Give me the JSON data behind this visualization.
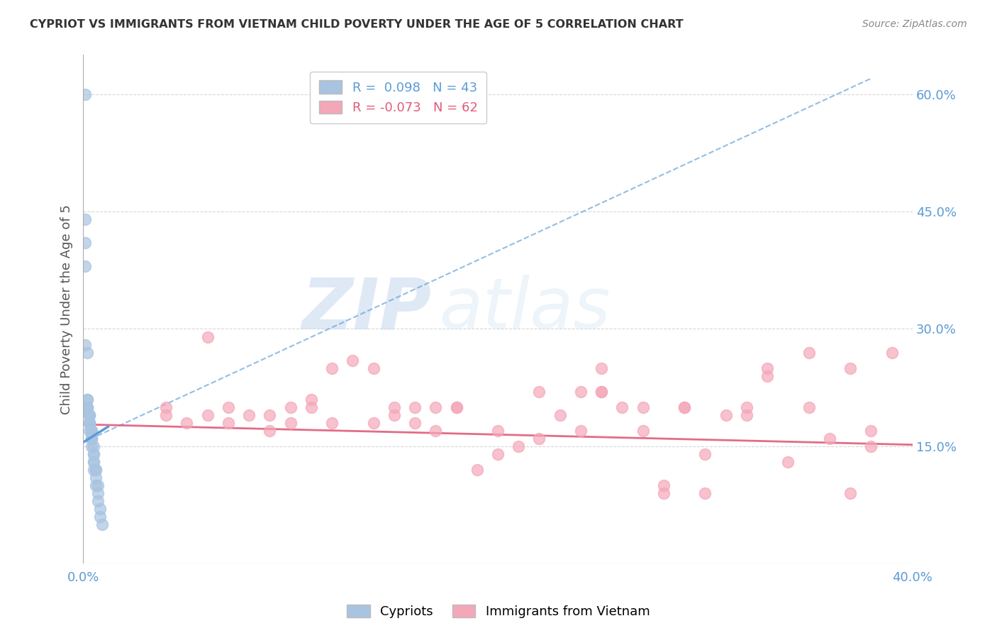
{
  "title": "CYPRIOT VS IMMIGRANTS FROM VIETNAM CHILD POVERTY UNDER THE AGE OF 5 CORRELATION CHART",
  "source": "Source: ZipAtlas.com",
  "ylabel": "Child Poverty Under the Age of 5",
  "xlim": [
    0.0,
    0.4
  ],
  "ylim": [
    0.0,
    0.65
  ],
  "y_tick_right_labels": [
    "",
    "15.0%",
    "",
    "30.0%",
    "",
    "45.0%",
    "",
    "60.0%"
  ],
  "y_tick_right_vals": [
    0.0,
    0.15,
    0.225,
    0.3,
    0.375,
    0.45,
    0.525,
    0.6
  ],
  "hlines": [
    0.15,
    0.3,
    0.45,
    0.6
  ],
  "cypriot_color": "#a8c4e0",
  "vietnam_color": "#f4a7b9",
  "cypriot_trend_color": "#5b9bd5",
  "vietnam_trend_color": "#e05c7a",
  "R_cypriot": 0.098,
  "N_cypriot": 43,
  "R_vietnam": -0.073,
  "N_vietnam": 62,
  "cypriot_x": [
    0.001,
    0.001,
    0.001,
    0.001,
    0.001,
    0.002,
    0.002,
    0.002,
    0.002,
    0.002,
    0.002,
    0.003,
    0.003,
    0.003,
    0.003,
    0.003,
    0.003,
    0.003,
    0.003,
    0.004,
    0.004,
    0.004,
    0.004,
    0.004,
    0.004,
    0.004,
    0.004,
    0.005,
    0.005,
    0.005,
    0.005,
    0.005,
    0.005,
    0.006,
    0.006,
    0.006,
    0.006,
    0.007,
    0.007,
    0.007,
    0.008,
    0.008,
    0.009
  ],
  "cypriot_y": [
    0.6,
    0.44,
    0.41,
    0.38,
    0.28,
    0.27,
    0.21,
    0.21,
    0.2,
    0.2,
    0.2,
    0.19,
    0.19,
    0.19,
    0.18,
    0.18,
    0.18,
    0.18,
    0.17,
    0.17,
    0.17,
    0.17,
    0.16,
    0.16,
    0.16,
    0.16,
    0.15,
    0.15,
    0.14,
    0.14,
    0.13,
    0.13,
    0.12,
    0.12,
    0.12,
    0.11,
    0.1,
    0.1,
    0.09,
    0.08,
    0.07,
    0.06,
    0.05
  ],
  "vietnam_x": [
    0.04,
    0.06,
    0.07,
    0.08,
    0.09,
    0.1,
    0.11,
    0.12,
    0.13,
    0.14,
    0.15,
    0.16,
    0.17,
    0.18,
    0.19,
    0.2,
    0.21,
    0.22,
    0.23,
    0.24,
    0.25,
    0.26,
    0.27,
    0.28,
    0.29,
    0.3,
    0.31,
    0.32,
    0.33,
    0.34,
    0.35,
    0.36,
    0.37,
    0.38,
    0.39,
    0.04,
    0.05,
    0.06,
    0.07,
    0.09,
    0.1,
    0.11,
    0.12,
    0.14,
    0.15,
    0.16,
    0.17,
    0.18,
    0.2,
    0.22,
    0.24,
    0.25,
    0.27,
    0.28,
    0.29,
    0.3,
    0.32,
    0.35,
    0.37,
    0.38,
    0.25,
    0.33
  ],
  "vietnam_y": [
    0.2,
    0.29,
    0.2,
    0.19,
    0.19,
    0.2,
    0.21,
    0.25,
    0.26,
    0.25,
    0.2,
    0.2,
    0.2,
    0.2,
    0.12,
    0.17,
    0.15,
    0.22,
    0.19,
    0.17,
    0.22,
    0.2,
    0.17,
    0.1,
    0.2,
    0.14,
    0.19,
    0.2,
    0.25,
    0.13,
    0.2,
    0.16,
    0.09,
    0.17,
    0.27,
    0.19,
    0.18,
    0.19,
    0.18,
    0.17,
    0.18,
    0.2,
    0.18,
    0.18,
    0.19,
    0.18,
    0.17,
    0.2,
    0.14,
    0.16,
    0.22,
    0.22,
    0.2,
    0.09,
    0.2,
    0.09,
    0.19,
    0.27,
    0.25,
    0.15,
    0.25,
    0.24
  ],
  "cypriot_trend_x": [
    0.0,
    0.38
  ],
  "cypriot_trend_y": [
    0.155,
    0.62
  ],
  "vietnam_trend_x": [
    0.0,
    0.4
  ],
  "vietnam_trend_y": [
    0.178,
    0.152
  ],
  "watermark_zip": "ZIP",
  "watermark_atlas": "atlas",
  "background_color": "#ffffff"
}
